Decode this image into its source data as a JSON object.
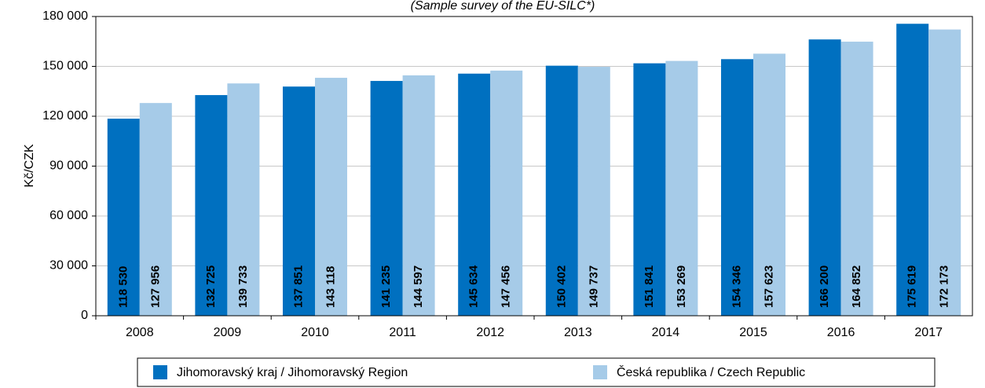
{
  "chart_data": {
    "type": "bar",
    "subtitle": "(Sample survey of the EU-SILC*)",
    "y_label": "Kč/CZK",
    "categories": [
      "2008",
      "2009",
      "2010",
      "2011",
      "2012",
      "2013",
      "2014",
      "2015",
      "2016",
      "2017"
    ],
    "series": [
      {
        "name": "Jihomoravský kraj / Jihomoravský Region",
        "color": "#0070c0",
        "values": [
          118530,
          132725,
          137851,
          141235,
          145634,
          150402,
          151841,
          154346,
          166200,
          175619
        ],
        "value_labels": [
          "118 530",
          "132 725",
          "137 851",
          "141 235",
          "145 634",
          "150 402",
          "151 841",
          "154 346",
          "166 200",
          "175 619"
        ]
      },
      {
        "name": "Česká republika / Czech Republic",
        "color": "#a6cbe8",
        "values": [
          127956,
          139733,
          143118,
          144597,
          147456,
          149737,
          153269,
          157623,
          164852,
          172173
        ],
        "value_labels": [
          "127 956",
          "139 733",
          "143 118",
          "144 597",
          "147 456",
          "149 737",
          "153 269",
          "157 623",
          "164 852",
          "172 173"
        ]
      }
    ],
    "ylim": [
      0,
      180000
    ],
    "yticks": [
      0,
      {
        "value": 30000,
        "label": "30 000"
      },
      {
        "value": 60000,
        "label": "60 000"
      },
      {
        "value": 90000,
        "label": "90 000"
      },
      {
        "value": 120000,
        "label": "120 000"
      },
      {
        "value": 150000,
        "label": "150 000"
      },
      {
        "value": 180000,
        "label": "180 000"
      }
    ],
    "grid": true,
    "legend": "bottom"
  }
}
